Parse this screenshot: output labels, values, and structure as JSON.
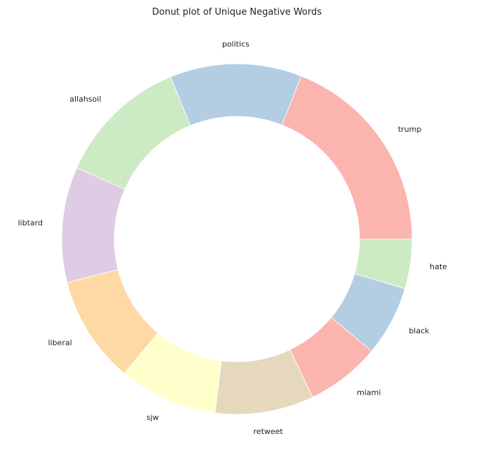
{
  "chart_data": {
    "type": "pie",
    "subtype": "donut",
    "title": "Donut plot of Unique Negative Words",
    "start_angle_deg": 0,
    "direction": "counterclockwise",
    "slices": [
      {
        "label": "trump",
        "value": 25,
        "color": "#fbb4ae"
      },
      {
        "label": "politics",
        "value": 16,
        "color": "#b3cde3"
      },
      {
        "label": "allahsoil",
        "value": 16,
        "color": "#ccebc5"
      },
      {
        "label": "libtard",
        "value": 14,
        "color": "#decbe4"
      },
      {
        "label": "liberal",
        "value": 13,
        "color": "#fed9a6"
      },
      {
        "label": "sjw",
        "value": 12,
        "color": "#ffffcc"
      },
      {
        "label": "retweet",
        "value": 12,
        "color": "#e5d8bd"
      },
      {
        "label": "miami",
        "value": 9,
        "color": "#fbb4ae"
      },
      {
        "label": "black",
        "value": 8.5,
        "color": "#b3cde3"
      },
      {
        "label": "hate",
        "value": 6,
        "color": "#ccebc5"
      }
    ]
  }
}
